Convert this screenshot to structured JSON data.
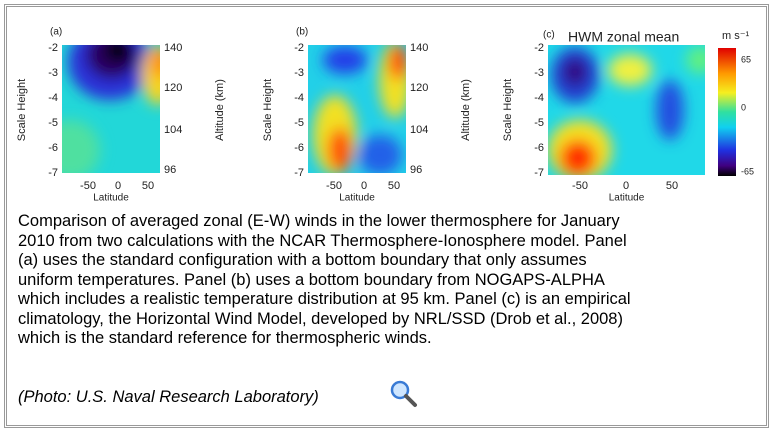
{
  "panels": [
    {
      "label": "(a)",
      "y_label": "Scale Height",
      "y_ticks": [
        "-2",
        "-3",
        "-4",
        "-5",
        "-6",
        "-7"
      ],
      "x_label": "Latitude",
      "x_ticks": [
        "-50",
        "0",
        "50"
      ],
      "right_label": "Altitude (km)",
      "right_ticks": [
        "140",
        "120",
        "104",
        "96"
      ]
    },
    {
      "label": "(b)",
      "y_label": "Scale Height",
      "y_ticks": [
        "-2",
        "-3",
        "-4",
        "-5",
        "-6",
        "-7"
      ],
      "x_label": "Latitude",
      "x_ticks": [
        "-50",
        "0",
        "50"
      ],
      "right_label": "Altitude (km)",
      "right_ticks": [
        "140",
        "120",
        "104",
        "96"
      ]
    },
    {
      "label": "(c)",
      "title": "HWM zonal mean",
      "y_label": "Scale Height",
      "y_ticks": [
        "-2",
        "-3",
        "-4",
        "-5",
        "-6",
        "-7"
      ],
      "x_label": "Latitude",
      "x_ticks": [
        "-50",
        "0",
        "50"
      ],
      "colorbar_label": "m s⁻¹",
      "colorbar_ticks": [
        "65",
        "0",
        "-65"
      ]
    }
  ],
  "caption_lines": [
    "Comparison of averaged zonal (E-W) winds in the lower thermosphere for January",
    "2010 from two calculations with the NCAR Thermosphere-Ionosphere model. Panel",
    "(a) uses the standard configuration with a bottom boundary that only assumes",
    "uniform temperatures. Panel (b) uses a bottom boundary from NOGAPS-ALPHA",
    "which includes a realistic temperature distribution at 95 km. Panel (c) is an empirical",
    "climatology, the Horizontal Wind Model, developed by NRL/SSD (Drob et al., 2008)",
    "which is the standard reference for thermospheric winds."
  ],
  "credit": "(Photo: U.S. Naval Research Laboratory)"
}
